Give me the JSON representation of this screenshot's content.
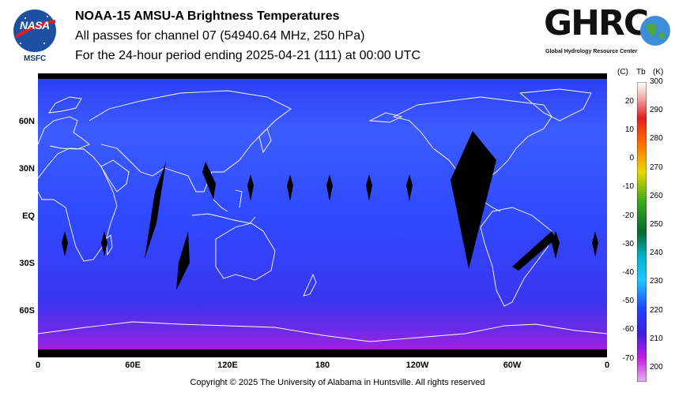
{
  "header": {
    "title": "NOAA-15 AMSU-A Brightness Temperatures",
    "subtitle": "All passes for channel 07 (54940.64 MHz, 250 hPa)",
    "period": "For the 24-hour period ending 2025-04-21 (111) at 00:00 UTC"
  },
  "logos": {
    "nasa_text": "NASA",
    "msfc_text": "MSFC",
    "ghrc_text": "GHRC",
    "ghrc_subtitle": "Global Hydrology Resource Center"
  },
  "map": {
    "latitude_labels": [
      "60N",
      "30N",
      "EQ",
      "30S",
      "60S"
    ],
    "longitude_labels": [
      "0",
      "60E",
      "120E",
      "180",
      "120W",
      "60W",
      "0"
    ],
    "colors": {
      "ocean_low": "#1e2ef0",
      "ocean_mid": "#3a55ff",
      "polar_south": "#b31ee0",
      "coastline": "#ffffff",
      "swath_gap": "#000000"
    }
  },
  "colorbar": {
    "header_c": "(C)",
    "header_tb": "Tb",
    "header_k": "(K)",
    "celsius_ticks": [
      "20",
      "10",
      "0",
      "-10",
      "-20",
      "-30",
      "-40",
      "-50",
      "-60",
      "-70"
    ],
    "kelvin_ticks": [
      "300",
      "290",
      "280",
      "270",
      "260",
      "250",
      "240",
      "230",
      "220",
      "210",
      "200"
    ],
    "range_k": [
      195,
      300
    ]
  },
  "footer": {
    "copyright": "Copyright © 2025 The University of Alabama in Huntsville.  All rights reserved"
  }
}
